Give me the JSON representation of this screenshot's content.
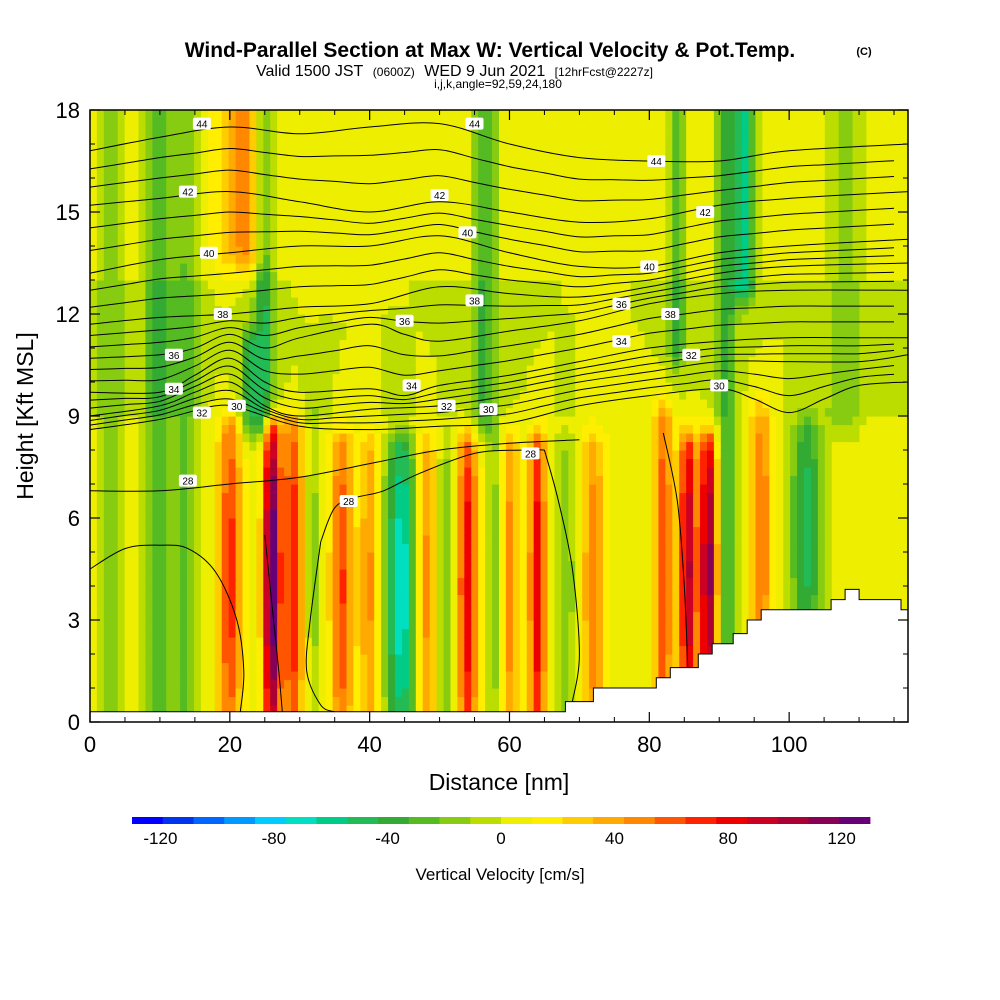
{
  "chart_data": {
    "type": "heatmap",
    "title": "Wind-Parallel Section at Max W: Vertical Velocity & Pot.Temp.",
    "title_mark": "(C)",
    "subtitle": {
      "valid": "Valid 1500 JST",
      "utc": "(0600Z)",
      "date": "WED 9 Jun 2021",
      "forecast": "[12hrFcst@2227z]"
    },
    "indices": "i,j,k,angle=92,59,24,180",
    "xlabel": "Distance [nm]",
    "ylabel": "Height [Kft MSL]",
    "xlim": [
      0,
      117
    ],
    "ylim": [
      0,
      18
    ],
    "x_ticks": [
      "0",
      "20",
      "40",
      "60",
      "80",
      "100"
    ],
    "x_tick_values": [
      0,
      20,
      40,
      60,
      80,
      100
    ],
    "y_ticks": [
      "0",
      "3",
      "6",
      "9",
      "12",
      "15",
      "18"
    ],
    "y_tick_values": [
      0,
      3,
      6,
      9,
      12,
      15,
      18
    ],
    "colorbar": {
      "label": "Vertical Velocity [cm/s]",
      "ticks": [
        "-120",
        "-80",
        "-40",
        "0",
        "40",
        "80",
        "120"
      ],
      "tick_values": [
        -120,
        -80,
        -40,
        0,
        40,
        80,
        120
      ],
      "range": [
        -130,
        130
      ],
      "colors": [
        "#0000ff",
        "#0033ee",
        "#0066ff",
        "#0099ff",
        "#00ccff",
        "#00e0c0",
        "#00cc88",
        "#22bb55",
        "#33aa33",
        "#55bb22",
        "#88cc11",
        "#bbdd00",
        "#eeee00",
        "#ffee00",
        "#ffcc00",
        "#ffaa00",
        "#ff8800",
        "#ff5500",
        "#ff2200",
        "#ee0000",
        "#cc0022",
        "#aa0033",
        "#880055",
        "#660077"
      ]
    },
    "terrain": [
      [
        0,
        0.3
      ],
      [
        68,
        0.3
      ],
      [
        68,
        0.6
      ],
      [
        72,
        0.6
      ],
      [
        72,
        1.0
      ],
      [
        81,
        1.0
      ],
      [
        81,
        1.3
      ],
      [
        83,
        1.3
      ],
      [
        83,
        1.6
      ],
      [
        87,
        1.6
      ],
      [
        87,
        2.0
      ],
      [
        89,
        2.0
      ],
      [
        89,
        2.3
      ],
      [
        92,
        2.3
      ],
      [
        92,
        2.6
      ],
      [
        94,
        2.6
      ],
      [
        94,
        3.0
      ],
      [
        96,
        3.0
      ],
      [
        96,
        3.3
      ],
      [
        106,
        3.3
      ],
      [
        106,
        3.6
      ],
      [
        108,
        3.6
      ],
      [
        108,
        3.9
      ],
      [
        110,
        3.9
      ],
      [
        110,
        3.6
      ],
      [
        116,
        3.6
      ],
      [
        116,
        3.3
      ],
      [
        117,
        3.3
      ],
      [
        117,
        0
      ],
      [
        0,
        0
      ]
    ],
    "theta_contours": [
      {
        "label": "28",
        "points": [
          [
            0,
            6.8
          ],
          [
            10,
            6.8
          ],
          [
            20,
            7.0
          ],
          [
            30,
            7.2
          ],
          [
            40,
            7.6
          ],
          [
            50,
            8.0
          ],
          [
            60,
            8.2
          ],
          [
            70,
            8.3
          ]
        ]
      },
      {
        "label": "28",
        "points": [
          [
            33,
            5.3
          ],
          [
            35,
            6.3
          ],
          [
            38,
            6.6
          ],
          [
            42,
            6.8
          ],
          [
            47,
            7.3
          ],
          [
            55,
            7.9
          ],
          [
            62,
            8.0
          ],
          [
            65,
            8.0
          ]
        ]
      },
      {
        "label": "28",
        "points": [
          [
            0,
            4.5
          ],
          [
            5,
            5.1
          ],
          [
            10,
            5.2
          ],
          [
            14,
            5.1
          ],
          [
            18,
            4.4
          ],
          [
            21,
            3.0
          ],
          [
            22,
            1.5
          ],
          [
            21.5,
            0.3
          ]
        ]
      },
      {
        "label": "28",
        "points": [
          [
            25,
            5.5
          ],
          [
            26,
            3.5
          ],
          [
            27,
            1.5
          ],
          [
            27.5,
            0.3
          ]
        ]
      },
      {
        "label": "28",
        "points": [
          [
            33,
            5.3
          ],
          [
            31.5,
            3
          ],
          [
            31,
            1.5
          ],
          [
            33,
            0.5
          ],
          [
            35,
            0.3
          ]
        ]
      },
      {
        "label": "28",
        "points": [
          [
            65,
            8.0
          ],
          [
            67,
            6.5
          ],
          [
            69,
            4.5
          ],
          [
            70,
            2.0
          ],
          [
            69,
            0.6
          ]
        ]
      },
      {
        "label": "28",
        "points": [
          [
            82,
            8.5
          ],
          [
            84,
            6.5
          ],
          [
            85,
            4.0
          ],
          [
            85.5,
            1.6
          ]
        ]
      },
      {
        "label": "30",
        "points": [
          [
            0,
            8.6
          ],
          [
            10,
            8.9
          ],
          [
            18,
            9.3
          ],
          [
            22,
            9.2
          ],
          [
            30,
            8.7
          ],
          [
            40,
            8.6
          ],
          [
            50,
            8.7
          ],
          [
            60,
            8.8
          ],
          [
            70,
            9.3
          ],
          [
            80,
            9.6
          ],
          [
            90,
            9.8
          ],
          [
            95,
            9.5
          ],
          [
            100,
            9.1
          ],
          [
            105,
            9.5
          ],
          [
            110,
            9.9
          ],
          [
            117,
            10.0
          ]
        ]
      },
      {
        "label": "32",
        "points": [
          [
            0,
            9.0
          ],
          [
            10,
            9.3
          ],
          [
            15,
            9.7
          ],
          [
            20,
            10.0
          ],
          [
            25,
            9.3
          ],
          [
            30,
            9.0
          ],
          [
            40,
            9.2
          ],
          [
            50,
            9.3
          ],
          [
            60,
            9.6
          ],
          [
            70,
            10.0
          ],
          [
            80,
            10.3
          ],
          [
            90,
            10.6
          ],
          [
            100,
            10.6
          ],
          [
            110,
            10.6
          ],
          [
            117,
            10.8
          ]
        ]
      },
      {
        "label": "34",
        "points": [
          [
            0,
            9.7
          ],
          [
            10,
            9.7
          ],
          [
            15,
            10.2
          ],
          [
            20,
            10.7
          ],
          [
            25,
            10.0
          ],
          [
            30,
            9.7
          ],
          [
            40,
            9.8
          ],
          [
            45,
            9.6
          ],
          [
            50,
            9.9
          ],
          [
            60,
            10.2
          ],
          [
            70,
            10.6
          ],
          [
            80,
            11.0
          ],
          [
            90,
            11.2
          ],
          [
            100,
            11.3
          ],
          [
            110,
            11.3
          ],
          [
            117,
            11.3
          ]
        ]
      },
      {
        "label": "36",
        "points": [
          [
            0,
            10.7
          ],
          [
            10,
            10.8
          ],
          [
            15,
            11.0
          ],
          [
            20,
            11.4
          ],
          [
            25,
            11.0
          ],
          [
            30,
            11.3
          ],
          [
            40,
            11.7
          ],
          [
            45,
            11.4
          ],
          [
            50,
            11.2
          ],
          [
            60,
            11.5
          ],
          [
            70,
            11.8
          ],
          [
            80,
            12.3
          ],
          [
            90,
            12.6
          ],
          [
            100,
            12.7
          ],
          [
            117,
            12.7
          ]
        ]
      },
      {
        "label": "38",
        "points": [
          [
            0,
            11.7
          ],
          [
            10,
            11.9
          ],
          [
            20,
            12.0
          ],
          [
            30,
            12.2
          ],
          [
            40,
            12.3
          ],
          [
            50,
            12.8
          ],
          [
            60,
            12.6
          ],
          [
            70,
            12.5
          ],
          [
            80,
            12.8
          ],
          [
            90,
            13.2
          ],
          [
            100,
            13.4
          ],
          [
            117,
            13.5
          ]
        ]
      },
      {
        "label": "40",
        "points": [
          [
            0,
            13.2
          ],
          [
            10,
            13.6
          ],
          [
            20,
            13.8
          ],
          [
            30,
            14.0
          ],
          [
            40,
            14.0
          ],
          [
            50,
            14.3
          ],
          [
            60,
            13.8
          ],
          [
            70,
            13.4
          ],
          [
            80,
            13.4
          ],
          [
            90,
            13.8
          ],
          [
            100,
            14.0
          ],
          [
            117,
            14.2
          ]
        ]
      },
      {
        "label": "42",
        "points": [
          [
            0,
            15.2
          ],
          [
            10,
            15.4
          ],
          [
            20,
            15.6
          ],
          [
            30,
            15.3
          ],
          [
            40,
            15.0
          ],
          [
            50,
            15.3
          ],
          [
            60,
            15.0
          ],
          [
            70,
            14.7
          ],
          [
            80,
            14.8
          ],
          [
            90,
            15.2
          ],
          [
            100,
            15.4
          ],
          [
            117,
            15.6
          ]
        ]
      },
      {
        "label": "44",
        "points": [
          [
            0,
            16.8
          ],
          [
            10,
            17.2
          ],
          [
            20,
            17.5
          ],
          [
            30,
            17.3
          ],
          [
            40,
            17.5
          ],
          [
            50,
            17.6
          ],
          [
            60,
            17.0
          ],
          [
            70,
            16.6
          ],
          [
            80,
            16.5
          ],
          [
            90,
            16.5
          ],
          [
            100,
            16.8
          ],
          [
            117,
            17.0
          ]
        ]
      }
    ],
    "theta_labels": [
      {
        "text": "28",
        "x": 14,
        "y": 7.1
      },
      {
        "text": "28",
        "x": 37,
        "y": 6.5
      },
      {
        "text": "28",
        "x": 63,
        "y": 7.9
      },
      {
        "text": "30",
        "x": 21,
        "y": 9.3
      },
      {
        "text": "30",
        "x": 57,
        "y": 9.2
      },
      {
        "text": "30",
        "x": 90,
        "y": 9.9
      },
      {
        "text": "32",
        "x": 16,
        "y": 9.1
      },
      {
        "text": "32",
        "x": 51,
        "y": 9.3
      },
      {
        "text": "32",
        "x": 86,
        "y": 10.8
      },
      {
        "text": "34",
        "x": 12,
        "y": 9.8
      },
      {
        "text": "34",
        "x": 46,
        "y": 9.9
      },
      {
        "text": "34",
        "x": 76,
        "y": 11.2
      },
      {
        "text": "36",
        "x": 12,
        "y": 10.8
      },
      {
        "text": "36",
        "x": 45,
        "y": 11.8
      },
      {
        "text": "36",
        "x": 76,
        "y": 12.3
      },
      {
        "text": "38",
        "x": 19,
        "y": 12.0
      },
      {
        "text": "38",
        "x": 55,
        "y": 12.4
      },
      {
        "text": "38",
        "x": 83,
        "y": 12.0
      },
      {
        "text": "40",
        "x": 17,
        "y": 13.8
      },
      {
        "text": "40",
        "x": 54,
        "y": 14.4
      },
      {
        "text": "40",
        "x": 80,
        "y": 13.4
      },
      {
        "text": "42",
        "x": 14,
        "y": 15.6
      },
      {
        "text": "42",
        "x": 50,
        "y": 15.5
      },
      {
        "text": "42",
        "x": 88,
        "y": 15.0
      },
      {
        "text": "44",
        "x": 16,
        "y": 17.6
      },
      {
        "text": "44",
        "x": 55,
        "y": 17.6
      },
      {
        "text": "44",
        "x": 81,
        "y": 16.5
      }
    ],
    "w_bands": [
      {
        "x": 3,
        "w": 2.0,
        "amp": -22,
        "ylo": 0,
        "yhi": 18
      },
      {
        "x": 10,
        "w": 2.2,
        "amp": -38,
        "ylo": 0,
        "yhi": 18
      },
      {
        "x": 14,
        "w": 1.6,
        "amp": -28,
        "ylo": 0,
        "yhi": 18
      },
      {
        "x": 20,
        "w": 1.6,
        "amp": 65,
        "ylo": 0,
        "yhi": 8.5
      },
      {
        "x": 22,
        "w": 3.5,
        "amp": 40,
        "ylo": 14,
        "yhi": 18
      },
      {
        "x": 23,
        "w": 1.4,
        "amp": -42,
        "ylo": 9,
        "yhi": 11
      },
      {
        "x": 26,
        "w": 1.2,
        "amp": 125,
        "ylo": 0,
        "yhi": 8.5
      },
      {
        "x": 25,
        "w": 1.4,
        "amp": -45,
        "ylo": 9,
        "yhi": 18
      },
      {
        "x": 29,
        "w": 1.5,
        "amp": 70,
        "ylo": 0,
        "yhi": 8.5
      },
      {
        "x": 32,
        "w": 1.3,
        "amp": -20,
        "ylo": 0,
        "yhi": 9
      },
      {
        "x": 36,
        "w": 1.6,
        "amp": 60,
        "ylo": 0,
        "yhi": 8
      },
      {
        "x": 40,
        "w": 1.4,
        "amp": 40,
        "ylo": 0,
        "yhi": 8
      },
      {
        "x": 44.5,
        "w": 2.2,
        "amp": -80,
        "ylo": 0,
        "yhi": 8
      },
      {
        "x": 48,
        "w": 1.5,
        "amp": 45,
        "ylo": 0,
        "yhi": 8
      },
      {
        "x": 51,
        "w": 1.3,
        "amp": -25,
        "ylo": 0,
        "yhi": 8
      },
      {
        "x": 54,
        "w": 1.4,
        "amp": 80,
        "ylo": 0,
        "yhi": 8
      },
      {
        "x": 56.5,
        "w": 1.8,
        "amp": -35,
        "ylo": 9,
        "yhi": 18
      },
      {
        "x": 58,
        "w": 1.3,
        "amp": -25,
        "ylo": 0,
        "yhi": 8
      },
      {
        "x": 60,
        "w": 1.3,
        "amp": 45,
        "ylo": 0,
        "yhi": 8
      },
      {
        "x": 64,
        "w": 1.2,
        "amp": 80,
        "ylo": 0,
        "yhi": 8
      },
      {
        "x": 68,
        "w": 1.6,
        "amp": -25,
        "ylo": 0,
        "yhi": 8
      },
      {
        "x": 72,
        "w": 1.6,
        "amp": 45,
        "ylo": 0,
        "yhi": 8
      },
      {
        "x": 82,
        "w": 1.3,
        "amp": 60,
        "ylo": 0,
        "yhi": 9
      },
      {
        "x": 84,
        "w": 1.2,
        "amp": -35,
        "ylo": 11,
        "yhi": 18
      },
      {
        "x": 85.5,
        "w": 1.2,
        "amp": 95,
        "ylo": 1,
        "yhi": 8
      },
      {
        "x": 88.5,
        "w": 1.3,
        "amp": 110,
        "ylo": 1,
        "yhi": 8
      },
      {
        "x": 91,
        "w": 1.4,
        "amp": -40,
        "ylo": 0,
        "yhi": 18
      },
      {
        "x": 93.5,
        "w": 1.5,
        "amp": -65,
        "ylo": 13,
        "yhi": 18
      },
      {
        "x": 96,
        "w": 1.5,
        "amp": 50,
        "ylo": 2,
        "yhi": 9
      },
      {
        "x": 102.5,
        "w": 2.4,
        "amp": -55,
        "ylo": 3,
        "yhi": 8.5
      },
      {
        "x": 108,
        "w": 2.5,
        "amp": -22,
        "ylo": 9,
        "yhi": 18
      }
    ]
  }
}
